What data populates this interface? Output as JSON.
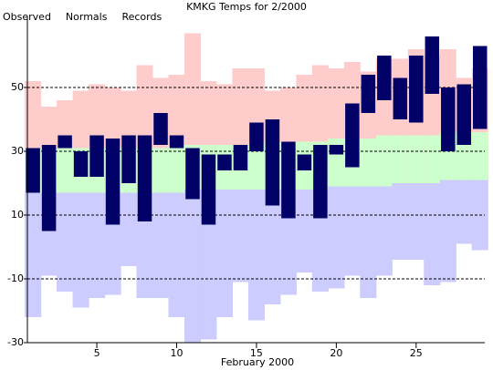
{
  "chart_data": {
    "type": "range_bar",
    "title": "KMKG Temps for 2/2000",
    "x_label": "February 2000",
    "x": [
      1,
      2,
      3,
      4,
      5,
      6,
      7,
      8,
      9,
      10,
      11,
      12,
      13,
      14,
      15,
      16,
      17,
      18,
      19,
      20,
      21,
      22,
      23,
      24,
      25,
      26,
      27,
      28,
      29
    ],
    "xlim": [
      0.65,
      29.3
    ],
    "xticks": [
      5,
      10,
      15,
      20,
      25
    ],
    "ylim": [
      -30,
      72
    ],
    "yticks": [
      -30,
      -10,
      10,
      30,
      50
    ],
    "grid": true,
    "series": [
      {
        "name": "Observed",
        "color": "#000066",
        "text_color": "#000066",
        "high": [
          31,
          32,
          35,
          30,
          35,
          34,
          35,
          35,
          42,
          35,
          31,
          29,
          29,
          32,
          39,
          40,
          33,
          29,
          32,
          32,
          45,
          54,
          60,
          53,
          60,
          66,
          50,
          51,
          63
        ],
        "low": [
          17,
          5,
          31,
          22,
          22,
          7,
          20,
          8,
          32,
          31,
          15,
          7,
          24,
          24,
          30,
          13,
          9,
          24,
          9,
          29,
          25,
          42,
          46,
          40,
          39,
          48,
          30,
          32,
          37
        ]
      },
      {
        "name": "Normals",
        "color": "#ccffcc",
        "text_color": "#008000",
        "high": [
          31,
          31,
          31,
          31,
          31,
          31,
          31,
          31,
          31,
          32,
          32,
          32,
          32,
          32,
          32,
          33,
          33,
          33,
          33,
          34,
          34,
          34,
          35,
          35,
          35,
          35,
          36,
          36,
          36
        ],
        "low": [
          17,
          17,
          17,
          17,
          17,
          17,
          17,
          17,
          17,
          17,
          18,
          18,
          18,
          18,
          18,
          18,
          18,
          18,
          18,
          19,
          19,
          19,
          19,
          20,
          20,
          20,
          21,
          21,
          21
        ]
      },
      {
        "name": "Records",
        "color": "#ffcccc",
        "low_color": "#ccccff",
        "text_color": "#ff99cc",
        "high": [
          52,
          44,
          46,
          49,
          51,
          50,
          49,
          57,
          53,
          54,
          67,
          52,
          51,
          56,
          56,
          49,
          50,
          54,
          57,
          56,
          58,
          55,
          59,
          59,
          62,
          60,
          62,
          53,
          56
        ],
        "low": [
          -22,
          -9,
          -14,
          -19,
          -16,
          -15,
          -6,
          -16,
          -16,
          -22,
          -30,
          -29,
          -22,
          -11,
          -23,
          -18,
          -15,
          -8,
          -14,
          -13,
          -9,
          -16,
          -9,
          -4,
          -4,
          -12,
          -11,
          1,
          -1
        ]
      }
    ]
  }
}
